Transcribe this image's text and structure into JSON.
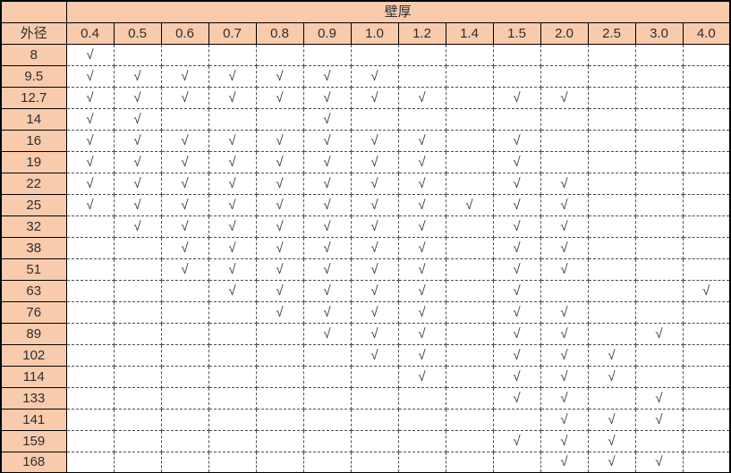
{
  "table": {
    "top_header_label": "壁厚",
    "row_header_label": "外径",
    "corner_label": "",
    "check_symbol": "√",
    "columns": [
      "0.4",
      "0.5",
      "0.6",
      "0.7",
      "0.8",
      "0.9",
      "1.0",
      "1.2",
      "1.4",
      "1.5",
      "2.0",
      "2.5",
      "3.0",
      "4.0"
    ],
    "rows": [
      {
        "diameter": "8",
        "checks": [
          "0.4"
        ]
      },
      {
        "diameter": "9.5",
        "checks": [
          "0.4",
          "0.5",
          "0.6",
          "0.7",
          "0.8",
          "0.9",
          "1.0"
        ]
      },
      {
        "diameter": "12.7",
        "checks": [
          "0.4",
          "0.5",
          "0.6",
          "0.7",
          "0.8",
          "0.9",
          "1.0",
          "1.2",
          "1.5",
          "2.0"
        ]
      },
      {
        "diameter": "14",
        "checks": [
          "0.4",
          "0.5",
          "0.9"
        ]
      },
      {
        "diameter": "16",
        "checks": [
          "0.4",
          "0.5",
          "0.6",
          "0.7",
          "0.8",
          "0.9",
          "1.0",
          "1.2",
          "1.5"
        ]
      },
      {
        "diameter": "19",
        "checks": [
          "0.4",
          "0.5",
          "0.6",
          "0.7",
          "0.8",
          "0.9",
          "1.0",
          "1.2",
          "1.5"
        ]
      },
      {
        "diameter": "22",
        "checks": [
          "0.4",
          "0.5",
          "0.6",
          "0.7",
          "0.8",
          "0.9",
          "1.0",
          "1.2",
          "1.5",
          "2.0"
        ]
      },
      {
        "diameter": "25",
        "checks": [
          "0.4",
          "0.5",
          "0.6",
          "0.7",
          "0.8",
          "0.9",
          "1.0",
          "1.2",
          "1.4",
          "1.5",
          "2.0"
        ]
      },
      {
        "diameter": "32",
        "checks": [
          "0.5",
          "0.6",
          "0.7",
          "0.8",
          "0.9",
          "1.0",
          "1.2",
          "1.5",
          "2.0"
        ]
      },
      {
        "diameter": "38",
        "checks": [
          "0.6",
          "0.7",
          "0.8",
          "0.9",
          "1.0",
          "1.2",
          "1.5",
          "2.0"
        ]
      },
      {
        "diameter": "51",
        "checks": [
          "0.6",
          "0.7",
          "0.8",
          "0.9",
          "1.0",
          "1.2",
          "1.5",
          "2.0"
        ]
      },
      {
        "diameter": "63",
        "checks": [
          "0.7",
          "0.8",
          "0.9",
          "1.0",
          "1.2",
          "1.5",
          "4.0"
        ]
      },
      {
        "diameter": "76",
        "checks": [
          "0.8",
          "0.9",
          "1.0",
          "1.2",
          "1.5",
          "2.0"
        ]
      },
      {
        "diameter": "89",
        "checks": [
          "0.9",
          "1.0",
          "1.2",
          "1.5",
          "2.0",
          "3.0"
        ]
      },
      {
        "diameter": "102",
        "checks": [
          "1.0",
          "1.2",
          "1.5",
          "2.0",
          "2.5"
        ]
      },
      {
        "diameter": "114",
        "checks": [
          "1.2",
          "1.5",
          "2.0",
          "2.5"
        ]
      },
      {
        "diameter": "133",
        "checks": [
          "1.5",
          "2.0",
          "3.0"
        ]
      },
      {
        "diameter": "141",
        "checks": [
          "2.0",
          "2.5",
          "3.0"
        ]
      },
      {
        "diameter": "159",
        "checks": [
          "1.5",
          "2.0",
          "2.5"
        ]
      },
      {
        "diameter": "168",
        "checks": [
          "2.0",
          "2.5",
          "3.0"
        ]
      }
    ]
  },
  "colors": {
    "header_bg": "#F8CBAD",
    "grid_solid": "#000000",
    "grid_dashed": "#4d4d4d",
    "text": "#2e2e2e",
    "check": "#3c4046"
  }
}
